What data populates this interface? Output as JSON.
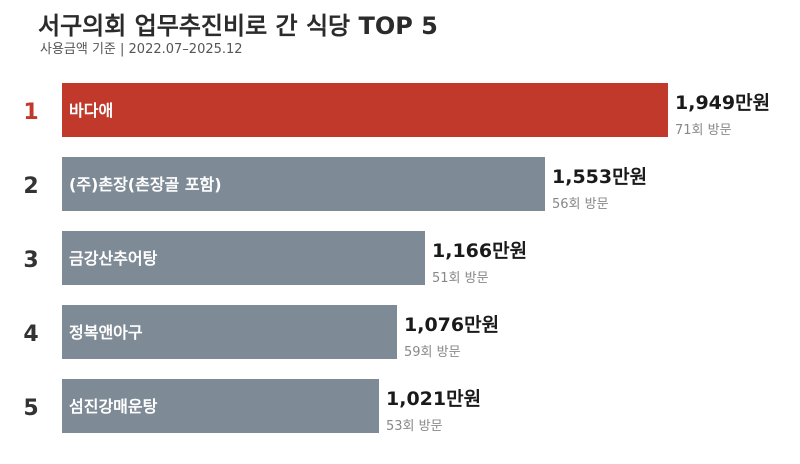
{
  "title": "서구의회 업무추진비로 간 식당 TOP 5",
  "subtitle": "사용금액 기준 | 2022.07–2025.12",
  "colors": {
    "highlight": "#c0392b",
    "bar": "#7e8a96",
    "rank_highlight": "#c0392b",
    "rank": "#333333",
    "value": "#1a1a1a",
    "visits": "#888888"
  },
  "chart_data": {
    "type": "bar",
    "orientation": "horizontal",
    "title": "서구의회 업무추진비로 간 식당 TOP 5",
    "subtitle": "사용금액 기준 | 2022.07–2025.12",
    "ranks": [
      "1",
      "2",
      "3",
      "4",
      "5"
    ],
    "categories": [
      "바다애",
      "(주)촌장(촌장골 포함)",
      "금강산추어탕",
      "정복앤아구",
      "섬진강매운탕"
    ],
    "values": [
      1949,
      1553,
      1166,
      1076,
      1021
    ],
    "value_labels": [
      "1,949만원",
      "1,553만원",
      "1,166만원",
      "1,076만원",
      "1,021만원"
    ],
    "visit_labels": [
      "71회 방문",
      "56회 방문",
      "51회 방문",
      "59회 방문",
      "53회 방문"
    ],
    "unit": "만원",
    "grid": false,
    "legend": "none"
  }
}
